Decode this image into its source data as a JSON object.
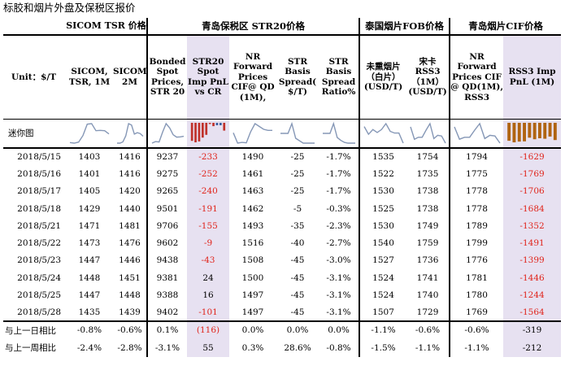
{
  "title": "标胶和烟片外盘及保税区报价",
  "headers": {
    "group_sicom": "SICOM TSR 价格",
    "group_qingdao": "青岛保税区 STR20价格",
    "group_thai": "泰国烟片FOB价格",
    "group_cif": "青岛烟片CIF价格",
    "unit": "Unit：$/T",
    "columns": [
      "SICOM, TSR, 1M",
      "SICOM,TSR, 2M",
      "Bonded Spot Prices, STR 20",
      "STR20 Spot Imp PnL vs CR",
      "NR Forward Prices CIF@ QD (1M),",
      "STR Basis Spread( $/T)",
      "STR Basis Spread Ratio%",
      "未熏烟片（白片）(USD/T)",
      "宋卡 RSS3（1M）(USD/T)",
      "NR Forward Prices CIF @ QD(1M), RSS3",
      "RSS3 Imp PnL (1M)"
    ]
  },
  "mini_label": "迷你图",
  "rows": [
    {
      "date": "2018/5/15",
      "v": [
        "1403",
        "1416",
        "9237",
        "-233",
        "1490",
        "-25",
        "-1.7%",
        "1535",
        "1754",
        "1794",
        "-1629"
      ]
    },
    {
      "date": "2018/5/16",
      "v": [
        "1401",
        "1416",
        "9275",
        "-252",
        "1461",
        "-25",
        "-1.7%",
        "1522",
        "1735",
        "1775",
        "-1769"
      ]
    },
    {
      "date": "2018/5/17",
      "v": [
        "1405",
        "1420",
        "9265",
        "-240",
        "1463",
        "-25",
        "-1.7%",
        "1530",
        "1738",
        "1778",
        "-1706"
      ]
    },
    {
      "date": "2018/5/18",
      "v": [
        "1429",
        "1440",
        "9501",
        "-191",
        "1462",
        "-5",
        "-0.3%",
        "1525",
        "1738",
        "1778",
        "-1684"
      ]
    },
    {
      "date": "2018/5/21",
      "v": [
        "1471",
        "1481",
        "9706",
        "-155",
        "1493",
        "-35",
        "-2.3%",
        "1530",
        "1749",
        "1789",
        "-1352"
      ]
    },
    {
      "date": "2018/5/22",
      "v": [
        "1473",
        "1476",
        "9602",
        "-9",
        "1516",
        "-40",
        "-2.7%",
        "1540",
        "1759",
        "1799",
        "-1491"
      ]
    },
    {
      "date": "2018/5/23",
      "v": [
        "1447",
        "1446",
        "9438",
        "-43",
        "1508",
        "-45",
        "-3.0%",
        "1527",
        "1736",
        "1776",
        "-1399"
      ]
    },
    {
      "date": "2018/5/24",
      "v": [
        "1448",
        "1451",
        "9381",
        "24",
        "1500",
        "-45",
        "-3.1%",
        "1524",
        "1741",
        "1781",
        "-1446"
      ]
    },
    {
      "date": "2018/5/25",
      "v": [
        "1447",
        "1448",
        "9388",
        "16",
        "1497",
        "-45",
        "-3.1%",
        "1524",
        "1740",
        "1780",
        "-1244"
      ]
    },
    {
      "date": "2018/5/28",
      "v": [
        "1435",
        "1439",
        "9402",
        "-101",
        "1497",
        "-45",
        "-3.1%",
        "1507",
        "1729",
        "1769",
        "-1564"
      ]
    }
  ],
  "summary": [
    {
      "label": "与上一日相比",
      "v": [
        "-0.8%",
        "-0.6%",
        "0.1%",
        "(116)",
        "0.0%",
        "0.0%",
        "0.0%",
        "-1.1%",
        "-0.6%",
        "-0.6%",
        "-319"
      ]
    },
    {
      "label": "与上一周相比",
      "v": [
        "-2.4%",
        "-2.8%",
        "-3.1%",
        "55",
        "0.3%",
        "28.6%",
        "-0.8%",
        "-1.5%",
        "-1.1%",
        "-1.1%",
        "-212"
      ]
    }
  ],
  "colors": {
    "negative_text": "#e0241b",
    "highlight_bg": "#e7e1f1",
    "line": "#8597b6",
    "bar_negative": "#c0312b",
    "bar_positive": "#3b5fa0",
    "bar_pnl": "#b06412"
  },
  "chart_data": [
    {
      "type": "line",
      "name": "SICOM, TSR, 1M",
      "values": [
        1403,
        1401,
        1405,
        1429,
        1471,
        1473,
        1447,
        1448,
        1447,
        1435
      ]
    },
    {
      "type": "line",
      "name": "SICOM,TSR, 2M",
      "values": [
        1416,
        1416,
        1420,
        1440,
        1481,
        1476,
        1446,
        1451,
        1448,
        1439
      ]
    },
    {
      "type": "line",
      "name": "Bonded Spot Prices, STR 20",
      "values": [
        9237,
        9275,
        9265,
        9501,
        9706,
        9602,
        9438,
        9381,
        9388,
        9402
      ]
    },
    {
      "type": "bar",
      "name": "STR20 Spot Imp PnL vs CR",
      "values": [
        -233,
        -252,
        -240,
        -191,
        -155,
        -9,
        -43,
        24,
        16,
        -101
      ]
    },
    {
      "type": "line",
      "name": "NR Forward Prices CIF@ QD (1M),",
      "values": [
        1490,
        1461,
        1463,
        1462,
        1493,
        1516,
        1508,
        1500,
        1497,
        1497
      ]
    },
    {
      "type": "line",
      "name": "STR Basis Spread( $/T)",
      "values": [
        -25,
        -25,
        -25,
        -5,
        -35,
        -40,
        -45,
        -45,
        -45,
        -45
      ]
    },
    {
      "type": "line",
      "name": "STR Basis Spread Ratio%",
      "values": [
        -1.7,
        -1.7,
        -1.7,
        -0.3,
        -2.3,
        -2.7,
        -3.0,
        -3.1,
        -3.1,
        -3.1
      ]
    },
    {
      "type": "line",
      "name": "未熏烟片（白片）(USD/T)",
      "values": [
        1535,
        1522,
        1530,
        1525,
        1530,
        1540,
        1527,
        1524,
        1524,
        1507
      ]
    },
    {
      "type": "line",
      "name": "宋卡 RSS3（1M）(USD/T)",
      "values": [
        1754,
        1735,
        1738,
        1738,
        1749,
        1759,
        1736,
        1741,
        1740,
        1729
      ]
    },
    {
      "type": "line",
      "name": "NR Forward Prices CIF @ QD(1M), RSS3",
      "values": [
        1794,
        1775,
        1778,
        1778,
        1789,
        1799,
        1776,
        1781,
        1780,
        1769
      ]
    },
    {
      "type": "bar",
      "name": "RSS3 Imp PnL (1M)",
      "values": [
        -1629,
        -1769,
        -1706,
        -1684,
        -1352,
        -1491,
        -1399,
        -1446,
        -1244,
        -1564
      ]
    }
  ]
}
